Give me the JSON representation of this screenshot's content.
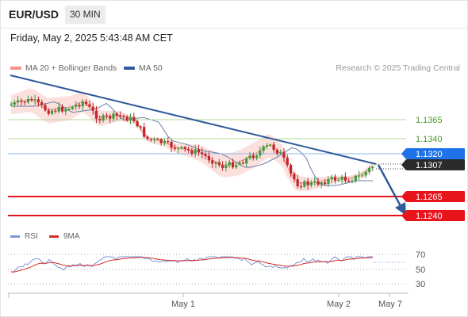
{
  "header": {
    "symbol": "EUR/USD",
    "timeframe": "30 MIN"
  },
  "date_line": "Friday, May 2, 2025 5:43:48 AM CET",
  "legend": {
    "ma20": {
      "label": "MA 20 + Bollinger Bands",
      "color": "#f4928a"
    },
    "ma50": {
      "label": "MA 50",
      "color": "#2f5a9b"
    }
  },
  "credit": "Research © 2025 Trading Central",
  "price_levels": {
    "r2": "1.1365",
    "r1": "1.1340",
    "pivot": "1.1320",
    "last": "1.1307",
    "s1": "1.1265",
    "s2": "1.1240"
  },
  "rsi_legend": {
    "rsi": "RSI",
    "ma9": "9MA"
  },
  "rsi_ticks": [
    "70",
    "50",
    "30"
  ],
  "x_ticks": [
    "May 1",
    "May 2",
    "May 7"
  ],
  "colors": {
    "support": "#e8141c",
    "resistance_line": "#b6d99a",
    "pivot_blue": "#1e73e8",
    "last_badge": "#2b2b2b",
    "trend": "#2f5a9b",
    "up_candle": "#3f9b3f",
    "down_candle": "#c0262c",
    "bb_fill": "#fbd6d2",
    "rsi": "#7d97d6",
    "rsi_ma": "#d42a2a"
  }
}
